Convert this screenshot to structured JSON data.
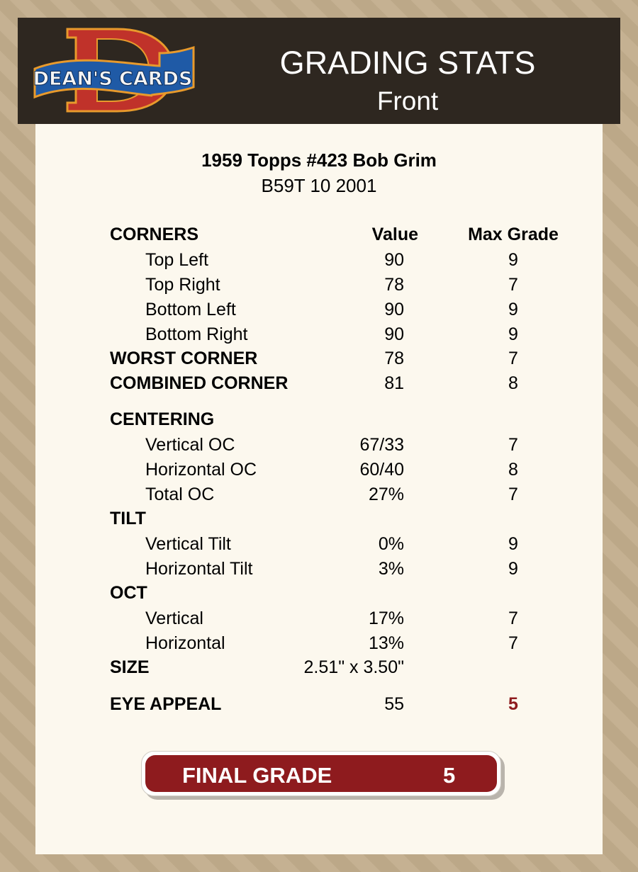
{
  "header": {
    "logo_text": "DEAN'S CARDS",
    "title": "GRADING STATS",
    "subtitle": "Front"
  },
  "card": {
    "name": "1959 Topps #423 Bob Grim",
    "code": "B59T 10 2001"
  },
  "columns": {
    "value": "Value",
    "max_grade": "Max Grade"
  },
  "rows": [
    {
      "label": "CORNERS",
      "bold": true
    },
    {
      "label": "Top Left",
      "value": "90",
      "max": "9"
    },
    {
      "label": "Top Right",
      "value": "78",
      "max": "7"
    },
    {
      "label": "Bottom Left",
      "value": "90",
      "max": "9"
    },
    {
      "label": "Bottom Right",
      "value": "90",
      "max": "9"
    },
    {
      "label": "WORST CORNER",
      "value": "78",
      "max": "7"
    },
    {
      "label": "COMBINED CORNER",
      "value": "81",
      "max": "8"
    },
    {
      "label": "CENTERING"
    },
    {
      "label": "Vertical OC",
      "value": "67/33",
      "max": "7"
    },
    {
      "label": "Horizontal OC",
      "value": "60/40",
      "max": "8"
    },
    {
      "label": "Total OC",
      "value": "27%",
      "max": "7"
    },
    {
      "label": "TILT"
    },
    {
      "label": "Vertical Tilt",
      "value": "0%",
      "max": "9"
    },
    {
      "label": "Horizontal Tilt",
      "value": "3%",
      "max": "9"
    },
    {
      "label": "OCT"
    },
    {
      "label": "Vertical",
      "value": "17%",
      "max": "7"
    },
    {
      "label": "Horizontal",
      "value": "13%",
      "max": "7"
    },
    {
      "label": "SIZE",
      "value": "2.51\" x 3.50\""
    },
    {
      "label": "EYE APPEAL",
      "value": "55",
      "max": "5"
    }
  ],
  "final_grade": {
    "label": "FINAL GRADE",
    "value": "5"
  },
  "colors": {
    "header_bg": "#2e2720",
    "panel_bg": "#fcf8ee",
    "accent_red": "#8e1b1e"
  }
}
